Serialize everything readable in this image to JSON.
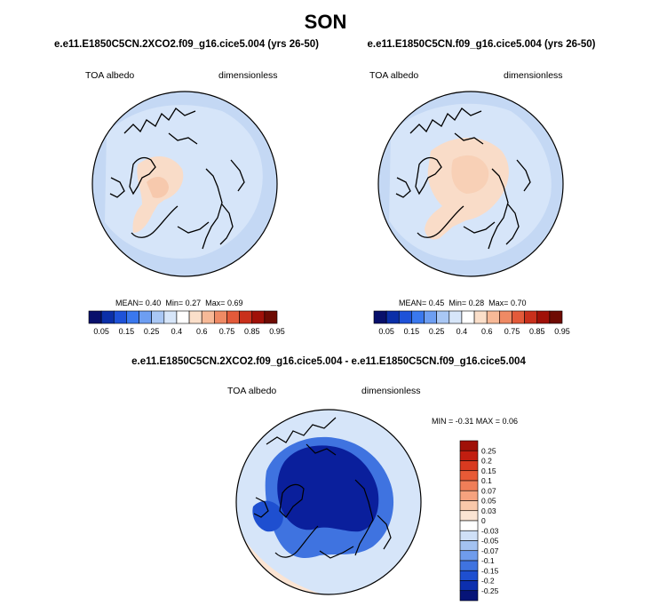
{
  "figure": {
    "title": "SON",
    "panels": [
      {
        "case": "e.e11.E1850C5CN.2XCO2.f09_g16.cice5.004 (yrs 26-50)",
        "variable": "TOA albedo",
        "units": "dimensionless",
        "stats": {
          "mean_label": "MEAN=",
          "mean": "0.40",
          "min_label": "Min=",
          "min": "0.27",
          "max_label": "Max=",
          "max": "0.69"
        }
      },
      {
        "case": "e.e11.E1850C5CN.f09_g16.cice5.004 (yrs 26-50)",
        "variable": "TOA albedo",
        "units": "dimensionless",
        "stats": {
          "mean_label": "MEAN=",
          "mean": "0.45",
          "min_label": "Min=",
          "min": "0.28",
          "max_label": "Max=",
          "max": "0.70"
        }
      }
    ],
    "diff_panel": {
      "case": "e.e11.E1850C5CN.2XCO2.f09_g16.cice5.004 - e.e11.E1850C5CN.f09_g16.cice5.004",
      "variable": "TOA albedo",
      "units": "dimensionless",
      "minmax_text": "MIN = -0.31 MAX = 0.06"
    },
    "colorbar_top": {
      "tick_labels": [
        "0.05",
        "0.15",
        "0.25",
        "0.4",
        "0.6",
        "0.75",
        "0.85",
        "0.95"
      ],
      "colors": [
        "#08106b",
        "#0b2fa8",
        "#1e52d8",
        "#3a78ee",
        "#6d9ef2",
        "#a9c7f4",
        "#d7e6f9",
        "#ffffff",
        "#fbdfca",
        "#f7b997",
        "#ef8a64",
        "#e35a3a",
        "#c9301c",
        "#a01108",
        "#6e0b03"
      ]
    },
    "colorbar_diff": {
      "tick_labels": [
        "0.25",
        "0.2",
        "0.15",
        "0.1",
        "0.07",
        "0.05",
        "0.03",
        "0",
        "-0.03",
        "-0.05",
        "-0.07",
        "-0.1",
        "-0.15",
        "-0.2",
        "-0.25"
      ],
      "colors": [
        "#a01108",
        "#c21e10",
        "#d83a20",
        "#e85a36",
        "#f07e58",
        "#f6a27e",
        "#f9c8aa",
        "#fbe4d3",
        "#ffffff",
        "#cfe0f7",
        "#a3c2f1",
        "#6f9cec",
        "#3f73e0",
        "#1e4fd0",
        "#0c2fae",
        "#061478"
      ]
    }
  },
  "colors": {
    "ocean_light_blue": "#c4d8f4",
    "light_blue": "#d6e5f9",
    "pale_salmon": "#f9dcc8",
    "deep_blue": "#0a1f9c",
    "coastline": "#000000"
  }
}
